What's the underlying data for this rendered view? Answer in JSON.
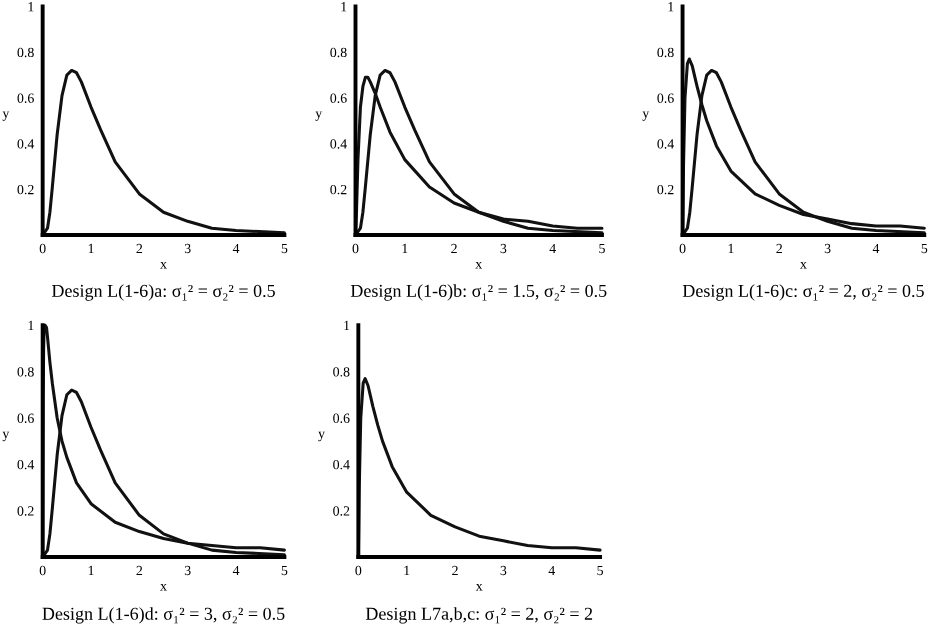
{
  "chart_data": [
    {
      "type": "line",
      "title": "Design L(1-6)a: σ₁² = σ₂² = 0.5",
      "xlabel": "x",
      "ylabel": "y",
      "xlim": [
        0,
        5
      ],
      "ylim": [
        0,
        1
      ],
      "xticks": [
        0,
        1,
        2,
        3,
        4,
        5
      ],
      "yticks": [
        0.2,
        0.4,
        0.6,
        0.8,
        1
      ],
      "grid": false,
      "series": [
        {
          "color": "#111111",
          "x": [
            0,
            0.1,
            0.15,
            0.2,
            0.3,
            0.4,
            0.5,
            0.6,
            0.7,
            0.8,
            1,
            1.2,
            1.5,
            2,
            2.5,
            3,
            3.5,
            4,
            5
          ],
          "values": [
            0,
            0.03,
            0.1,
            0.21,
            0.44,
            0.61,
            0.7,
            0.72,
            0.71,
            0.67,
            0.56,
            0.46,
            0.32,
            0.18,
            0.1,
            0.06,
            0.03,
            0.02,
            0.01
          ]
        }
      ]
    },
    {
      "type": "line",
      "title": "Design L(1-6)b: σ₁² = 1.5, σ₂² = 0.5",
      "xlabel": "x",
      "ylabel": "y",
      "xlim": [
        0,
        5
      ],
      "ylim": [
        0,
        1
      ],
      "xticks": [
        0,
        1,
        2,
        3,
        4,
        5
      ],
      "yticks": [
        0.2,
        0.4,
        0.6,
        0.8,
        1
      ],
      "grid": false,
      "series": [
        {
          "color": "#111111",
          "x": [
            0,
            0.02,
            0.05,
            0.1,
            0.15,
            0.2,
            0.25,
            0.3,
            0.4,
            0.5,
            0.7,
            1,
            1.5,
            2,
            2.5,
            3,
            3.5,
            4,
            4.5,
            5
          ],
          "values": [
            0,
            0.1,
            0.33,
            0.56,
            0.65,
            0.69,
            0.69,
            0.67,
            0.62,
            0.56,
            0.45,
            0.33,
            0.21,
            0.14,
            0.1,
            0.07,
            0.06,
            0.04,
            0.03,
            0.03
          ]
        },
        {
          "color": "#111111",
          "x": [
            0,
            0.1,
            0.15,
            0.2,
            0.3,
            0.4,
            0.5,
            0.6,
            0.7,
            0.8,
            1,
            1.2,
            1.5,
            2,
            2.5,
            3,
            3.5,
            4,
            5
          ],
          "values": [
            0,
            0.03,
            0.1,
            0.21,
            0.44,
            0.61,
            0.7,
            0.72,
            0.71,
            0.67,
            0.56,
            0.46,
            0.32,
            0.18,
            0.1,
            0.06,
            0.03,
            0.02,
            0.01
          ]
        }
      ]
    },
    {
      "type": "line",
      "title": "Design L(1-6)c: σ₁² = 2, σ₂² = 0.5",
      "xlabel": "x",
      "ylabel": "y",
      "xlim": [
        0,
        5
      ],
      "ylim": [
        0,
        1
      ],
      "xticks": [
        0,
        1,
        2,
        3,
        4,
        5
      ],
      "yticks": [
        0.2,
        0.4,
        0.6,
        0.8,
        1
      ],
      "grid": false,
      "series": [
        {
          "color": "#111111",
          "x": [
            0,
            0.01,
            0.02,
            0.05,
            0.1,
            0.14,
            0.2,
            0.3,
            0.4,
            0.5,
            0.7,
            1,
            1.5,
            2,
            2.5,
            3,
            3.5,
            4,
            4.5,
            5
          ],
          "values": [
            0,
            0.14,
            0.31,
            0.6,
            0.75,
            0.77,
            0.74,
            0.65,
            0.57,
            0.5,
            0.39,
            0.28,
            0.18,
            0.13,
            0.09,
            0.07,
            0.05,
            0.04,
            0.04,
            0.03
          ]
        },
        {
          "color": "#111111",
          "x": [
            0,
            0.1,
            0.15,
            0.2,
            0.3,
            0.4,
            0.5,
            0.6,
            0.7,
            0.8,
            1,
            1.2,
            1.5,
            2,
            2.5,
            3,
            3.5,
            4,
            5
          ],
          "values": [
            0,
            0.03,
            0.1,
            0.21,
            0.44,
            0.61,
            0.7,
            0.72,
            0.71,
            0.67,
            0.56,
            0.46,
            0.32,
            0.18,
            0.1,
            0.06,
            0.03,
            0.02,
            0.01
          ]
        }
      ]
    },
    {
      "type": "line",
      "title": "Design L(1-6)d: σ₁² = 3, σ₂² = 0.5",
      "xlabel": "x",
      "ylabel": "y",
      "xlim": [
        0,
        5
      ],
      "ylim": [
        0,
        1
      ],
      "xticks": [
        0,
        1,
        2,
        3,
        4,
        5
      ],
      "yticks": [
        0.2,
        0.4,
        0.6,
        0.8,
        1
      ],
      "grid": false,
      "series": [
        {
          "color": "#111111",
          "x": [
            0,
            0.01,
            0.02,
            0.03,
            0.05,
            0.08,
            0.1,
            0.15,
            0.2,
            0.3,
            0.4,
            0.5,
            0.7,
            1,
            1.5,
            2,
            2.5,
            3,
            3.5,
            4,
            4.5,
            5
          ],
          "values": [
            0,
            0.67,
            0.9,
            0.99,
            1,
            0.99,
            0.95,
            0.84,
            0.75,
            0.6,
            0.5,
            0.43,
            0.32,
            0.23,
            0.15,
            0.11,
            0.08,
            0.06,
            0.05,
            0.04,
            0.04,
            0.03
          ]
        },
        {
          "color": "#111111",
          "x": [
            0,
            0.1,
            0.15,
            0.2,
            0.3,
            0.4,
            0.5,
            0.6,
            0.7,
            0.8,
            1,
            1.2,
            1.5,
            2,
            2.5,
            3,
            3.5,
            4,
            5
          ],
          "values": [
            0,
            0.03,
            0.1,
            0.21,
            0.44,
            0.61,
            0.7,
            0.72,
            0.71,
            0.67,
            0.56,
            0.46,
            0.32,
            0.18,
            0.1,
            0.06,
            0.03,
            0.02,
            0.01
          ]
        }
      ]
    },
    {
      "type": "line",
      "title": "Design L7a,b,c: σ₁² = 2, σ₂² = 2",
      "xlabel": "x",
      "ylabel": "y",
      "xlim": [
        0,
        5
      ],
      "ylim": [
        0,
        1
      ],
      "xticks": [
        0,
        1,
        2,
        3,
        4,
        5
      ],
      "yticks": [
        0.2,
        0.4,
        0.6,
        0.8,
        1
      ],
      "grid": false,
      "series": [
        {
          "color": "#111111",
          "x": [
            0,
            0.01,
            0.02,
            0.05,
            0.1,
            0.14,
            0.2,
            0.3,
            0.4,
            0.5,
            0.7,
            1,
            1.5,
            2,
            2.5,
            3,
            3.5,
            4,
            4.5,
            5
          ],
          "values": [
            0,
            0.14,
            0.31,
            0.6,
            0.75,
            0.77,
            0.74,
            0.65,
            0.57,
            0.5,
            0.39,
            0.28,
            0.18,
            0.13,
            0.09,
            0.07,
            0.05,
            0.04,
            0.04,
            0.03
          ]
        }
      ]
    }
  ]
}
